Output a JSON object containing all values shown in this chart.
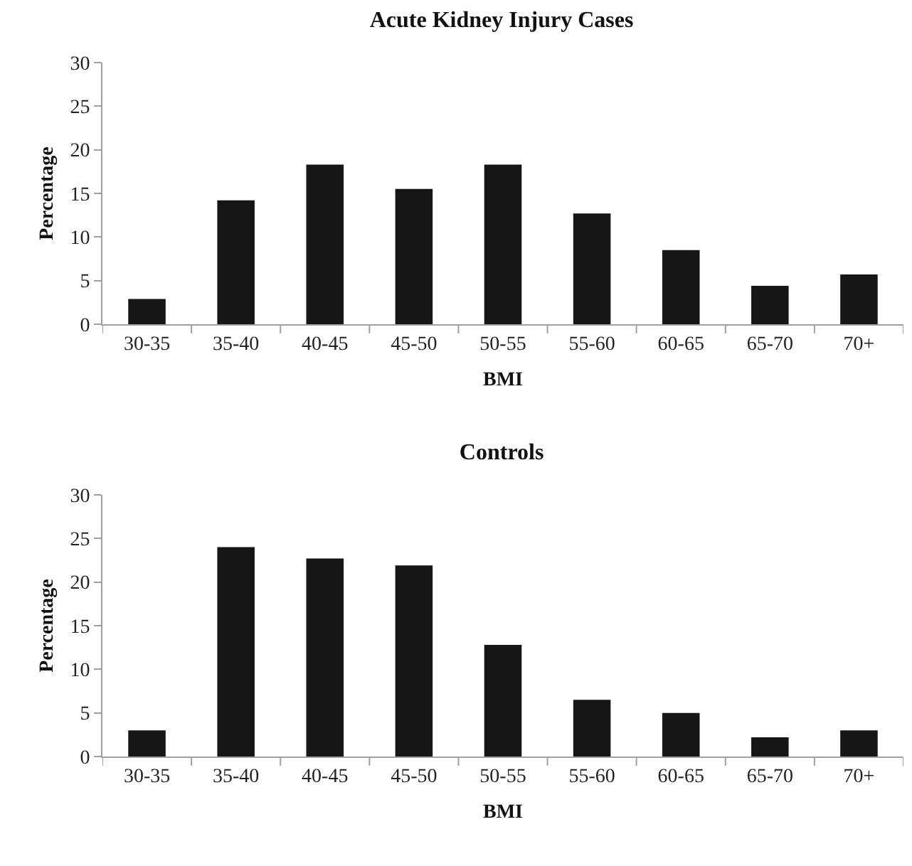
{
  "chart_data": [
    {
      "type": "bar",
      "title": "Acute Kidney Injury Cases",
      "xlabel": "BMI",
      "ylabel": "Percentage",
      "categories": [
        "30-35",
        "35-40",
        "40-45",
        "45-50",
        "50-55",
        "55-60",
        "60-65",
        "65-70",
        "70+"
      ],
      "values": [
        2.9,
        14.2,
        18.3,
        15.5,
        18.3,
        12.7,
        8.5,
        4.4,
        5.7
      ],
      "color": "#161616",
      "ylim": [
        0,
        30
      ],
      "yticks": [
        0,
        5,
        10,
        15,
        20,
        25,
        30
      ],
      "grid": false,
      "legend": false
    },
    {
      "type": "bar",
      "title": "Controls",
      "xlabel": "BMI",
      "ylabel": "Percentage",
      "categories": [
        "30-35",
        "35-40",
        "40-45",
        "45-50",
        "50-55",
        "55-60",
        "60-65",
        "65-70",
        "70+"
      ],
      "values": [
        3.0,
        24.0,
        22.7,
        21.9,
        12.8,
        6.5,
        5.0,
        2.2,
        3.0
      ],
      "color": "#161616",
      "ylim": [
        0,
        30
      ],
      "yticks": [
        0,
        5,
        10,
        15,
        20,
        25,
        30
      ],
      "grid": false,
      "legend": false
    }
  ]
}
